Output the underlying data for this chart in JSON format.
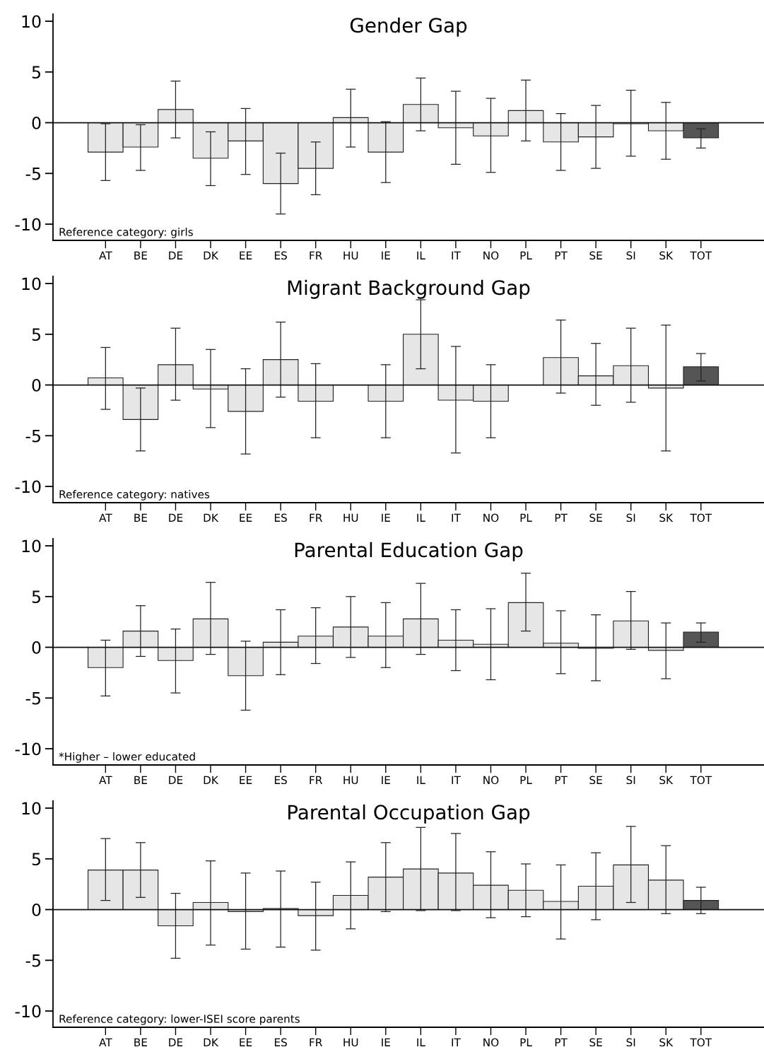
{
  "chart_data": [
    {
      "type": "bar",
      "title": "Gender Gap",
      "annotations": [
        "Reference category: girls"
      ],
      "categories": [
        "AT",
        "BE",
        "DE",
        "DK",
        "EE",
        "ES",
        "FR",
        "HU",
        "IE",
        "IL",
        "IT",
        "NO",
        "PL",
        "PT",
        "SE",
        "SI",
        "SK",
        "TOT"
      ],
      "values": [
        -2.9,
        -2.4,
        1.3,
        -3.5,
        -1.8,
        -6.0,
        -4.5,
        0.5,
        -2.9,
        1.8,
        -0.5,
        -1.3,
        1.2,
        -1.9,
        -1.4,
        -0.1,
        -0.8,
        -1.5
      ],
      "errors": [
        [
          -5.7,
          -0.1
        ],
        [
          -4.7,
          -0.2
        ],
        [
          -1.5,
          4.1
        ],
        [
          -6.2,
          -0.9
        ],
        [
          -5.1,
          1.4
        ],
        [
          -9.0,
          -3.0
        ],
        [
          -7.1,
          -1.9
        ],
        [
          -2.4,
          3.3
        ],
        [
          -5.9,
          0.1
        ],
        [
          -0.8,
          4.4
        ],
        [
          -4.1,
          3.1
        ],
        [
          -4.9,
          2.4
        ],
        [
          -1.8,
          4.2
        ],
        [
          -4.7,
          0.9
        ],
        [
          -4.5,
          1.7
        ],
        [
          -3.3,
          3.2
        ],
        [
          -3.6,
          2.0
        ],
        [
          -2.5,
          -0.6
        ]
      ],
      "colors": [
        "#e6e6e6",
        "#e6e6e6",
        "#e6e6e6",
        "#e6e6e6",
        "#e6e6e6",
        "#e6e6e6",
        "#e6e6e6",
        "#e6e6e6",
        "#e6e6e6",
        "#e6e6e6",
        "#e6e6e6",
        "#e6e6e6",
        "#e6e6e6",
        "#e6e6e6",
        "#e6e6e6",
        "#e6e6e6",
        "#e6e6e6",
        "#555555"
      ],
      "ylim": [
        -11.6,
        10.7
      ],
      "yticks": [
        -10,
        -5,
        0,
        5,
        10
      ],
      "ref_lines": [
        {
          "axis": "y",
          "value": 0
        }
      ],
      "grid": false,
      "legend": false
    },
    {
      "type": "bar",
      "title": "Migrant Background Gap",
      "annotations": [
        "Reference category: natives"
      ],
      "categories": [
        "AT",
        "BE",
        "DE",
        "DK",
        "EE",
        "ES",
        "FR",
        "HU",
        "IE",
        "IL",
        "IT",
        "NO",
        "PL",
        "PT",
        "SE",
        "SI",
        "SK",
        "TOT"
      ],
      "values": [
        0.7,
        -3.4,
        2.0,
        -0.4,
        -2.6,
        2.5,
        -1.6,
        null,
        -1.6,
        5.0,
        -1.5,
        -1.6,
        null,
        2.7,
        0.9,
        1.9,
        -0.3,
        1.8
      ],
      "errors": [
        [
          -2.4,
          3.7
        ],
        [
          -6.5,
          -0.3
        ],
        [
          -1.5,
          5.6
        ],
        [
          -4.2,
          3.5
        ],
        [
          -6.8,
          1.6
        ],
        [
          -1.2,
          6.2
        ],
        [
          -5.2,
          2.1
        ],
        null,
        [
          -5.2,
          2.0
        ],
        [
          1.6,
          8.4
        ],
        [
          -6.7,
          3.8
        ],
        [
          -5.2,
          2.0
        ],
        null,
        [
          -0.8,
          6.4
        ],
        [
          -2.0,
          4.1
        ],
        [
          -1.7,
          5.6
        ],
        [
          -6.5,
          5.9
        ],
        [
          0.4,
          3.1
        ]
      ],
      "colors": [
        "#e6e6e6",
        "#e6e6e6",
        "#e6e6e6",
        "#e6e6e6",
        "#e6e6e6",
        "#e6e6e6",
        "#e6e6e6",
        "#e6e6e6",
        "#e6e6e6",
        "#e6e6e6",
        "#e6e6e6",
        "#e6e6e6",
        "#e6e6e6",
        "#e6e6e6",
        "#e6e6e6",
        "#e6e6e6",
        "#e6e6e6",
        "#555555"
      ],
      "ylim": [
        -11.6,
        10.7
      ],
      "yticks": [
        -10,
        -5,
        0,
        5,
        10
      ],
      "ref_lines": [
        {
          "axis": "y",
          "value": 0
        }
      ],
      "grid": false,
      "legend": false
    },
    {
      "type": "bar",
      "title": "Parental Education Gap",
      "annotations": [
        "*Higher – lower educated"
      ],
      "categories": [
        "AT",
        "BE",
        "DE",
        "DK",
        "EE",
        "ES",
        "FR",
        "HU",
        "IE",
        "IL",
        "IT",
        "NO",
        "PL",
        "PT",
        "SE",
        "SI",
        "SK",
        "TOT"
      ],
      "values": [
        -2.0,
        1.6,
        -1.3,
        2.8,
        -2.8,
        0.5,
        1.1,
        2.0,
        1.1,
        2.8,
        0.7,
        0.3,
        4.4,
        0.4,
        -0.1,
        2.6,
        -0.3,
        1.5
      ],
      "errors": [
        [
          -4.8,
          0.7
        ],
        [
          -0.9,
          4.1
        ],
        [
          -4.5,
          1.8
        ],
        [
          -0.7,
          6.4
        ],
        [
          -6.2,
          0.6
        ],
        [
          -2.7,
          3.7
        ],
        [
          -1.6,
          3.9
        ],
        [
          -1.0,
          5.0
        ],
        [
          -2.0,
          4.4
        ],
        [
          -0.7,
          6.3
        ],
        [
          -2.3,
          3.7
        ],
        [
          -3.2,
          3.8
        ],
        [
          1.6,
          7.3
        ],
        [
          -2.6,
          3.6
        ],
        [
          -3.3,
          3.2
        ],
        [
          -0.2,
          5.5
        ],
        [
          -3.1,
          2.4
        ],
        [
          0.5,
          2.4
        ]
      ],
      "colors": [
        "#e6e6e6",
        "#e6e6e6",
        "#e6e6e6",
        "#e6e6e6",
        "#e6e6e6",
        "#e6e6e6",
        "#e6e6e6",
        "#e6e6e6",
        "#e6e6e6",
        "#e6e6e6",
        "#e6e6e6",
        "#e6e6e6",
        "#e6e6e6",
        "#e6e6e6",
        "#e6e6e6",
        "#e6e6e6",
        "#e6e6e6",
        "#555555"
      ],
      "ylim": [
        -11.6,
        10.7
      ],
      "yticks": [
        -10,
        -5,
        0,
        5,
        10
      ],
      "ref_lines": [
        {
          "axis": "y",
          "value": 0
        }
      ],
      "grid": false,
      "legend": false
    },
    {
      "type": "bar",
      "title": "Parental Occupation Gap",
      "annotations": [
        "Reference category: lower-ISEI score parents"
      ],
      "categories": [
        "AT",
        "BE",
        "DE",
        "DK",
        "EE",
        "ES",
        "FR",
        "HU",
        "IE",
        "IL",
        "IT",
        "NO",
        "PL",
        "PT",
        "SE",
        "SI",
        "SK",
        "TOT"
      ],
      "values": [
        3.9,
        3.9,
        -1.6,
        0.7,
        -0.2,
        0.1,
        -0.6,
        1.4,
        3.2,
        4.0,
        3.6,
        2.4,
        1.9,
        0.8,
        2.3,
        4.4,
        2.9,
        0.9
      ],
      "errors": [
        [
          0.9,
          7.0
        ],
        [
          1.2,
          6.6
        ],
        [
          -4.8,
          1.6
        ],
        [
          -3.5,
          4.8
        ],
        [
          -3.9,
          3.6
        ],
        [
          -3.7,
          3.8
        ],
        [
          -4.0,
          2.7
        ],
        [
          -1.9,
          4.7
        ],
        [
          -0.2,
          6.6
        ],
        [
          -0.1,
          8.1
        ],
        [
          -0.1,
          7.5
        ],
        [
          -0.8,
          5.7
        ],
        [
          -0.7,
          4.5
        ],
        [
          -2.9,
          4.4
        ],
        [
          -1.0,
          5.6
        ],
        [
          0.7,
          8.2
        ],
        [
          -0.4,
          6.3
        ],
        [
          -0.4,
          2.2
        ]
      ],
      "colors": [
        "#e6e6e6",
        "#e6e6e6",
        "#e6e6e6",
        "#e6e6e6",
        "#e6e6e6",
        "#e6e6e6",
        "#e6e6e6",
        "#e6e6e6",
        "#e6e6e6",
        "#e6e6e6",
        "#e6e6e6",
        "#e6e6e6",
        "#e6e6e6",
        "#e6e6e6",
        "#e6e6e6",
        "#e6e6e6",
        "#e6e6e6",
        "#555555"
      ],
      "ylim": [
        -11.6,
        10.7
      ],
      "yticks": [
        -10,
        -5,
        0,
        5,
        10
      ],
      "ref_lines": [
        {
          "axis": "y",
          "value": 0
        }
      ],
      "grid": false,
      "legend": false
    }
  ]
}
